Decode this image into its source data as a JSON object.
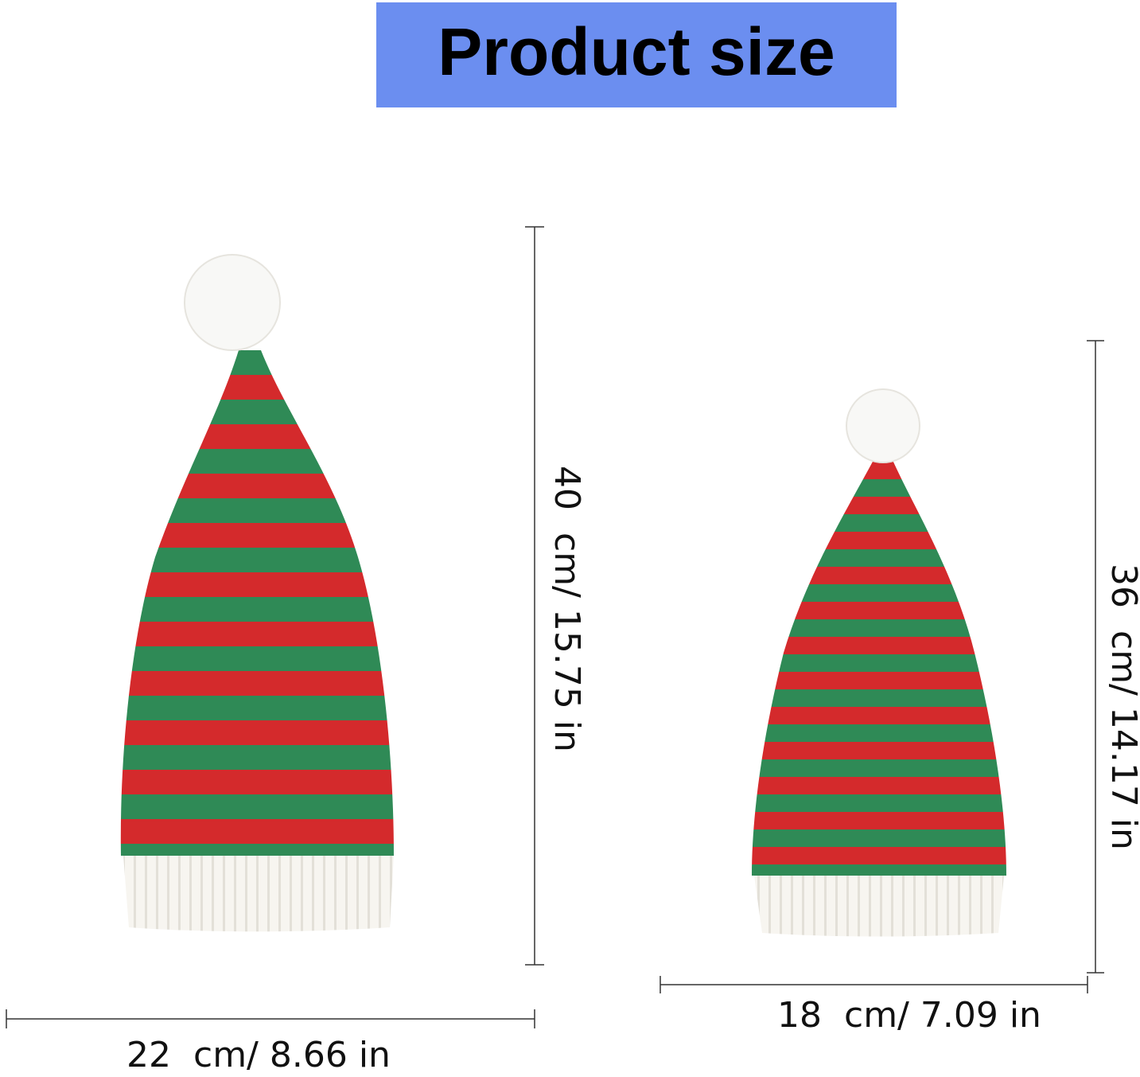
{
  "header": {
    "title": "Product size"
  },
  "large_hat": {
    "width_label": "22  cm/ 8.66 in",
    "height_label": "40  cm/ 15.75 in"
  },
  "small_hat": {
    "width_label": "18  cm/ 7.09 in",
    "height_label": "36  cm/ 14.17 in"
  }
}
